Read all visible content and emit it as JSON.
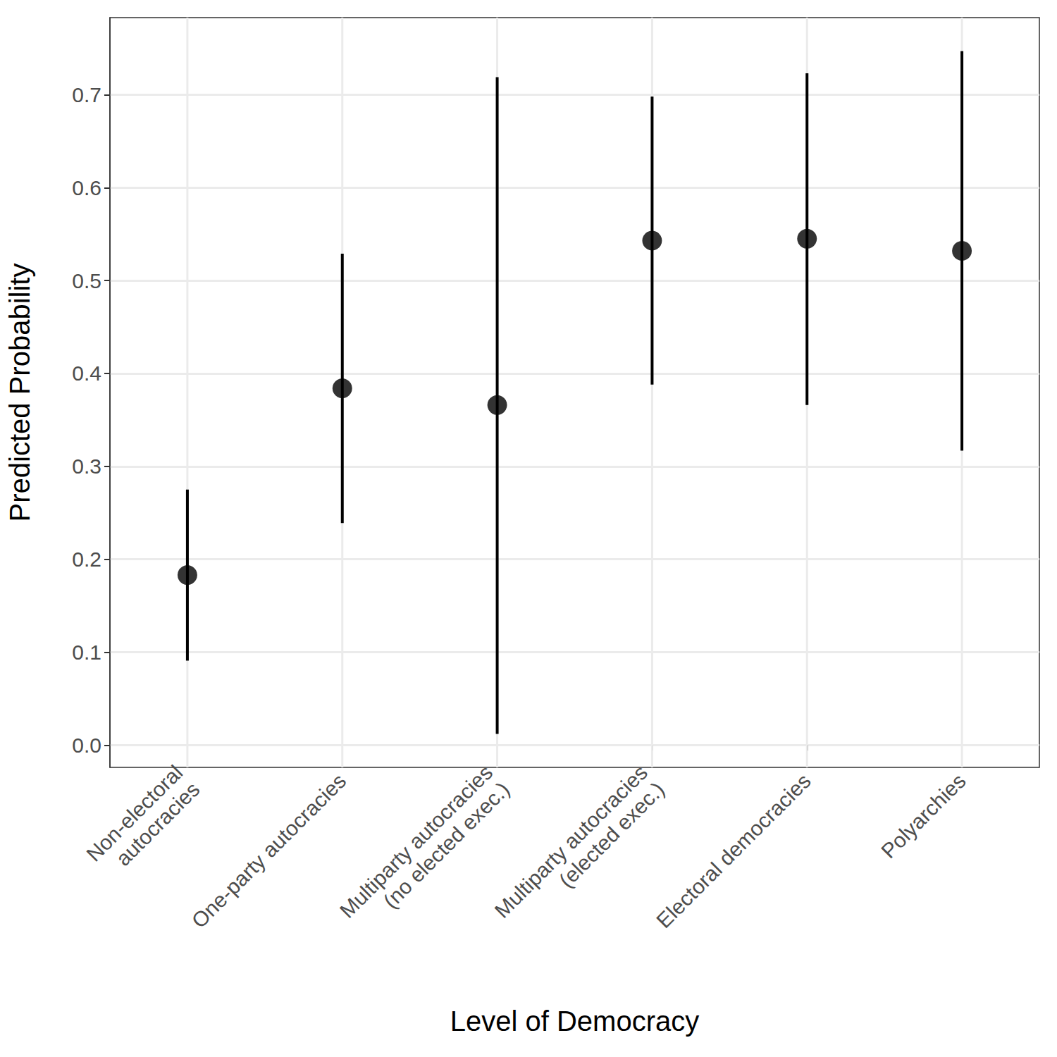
{
  "chart_data": {
    "type": "scatter",
    "x_label": "Level of Democracy",
    "y_label": "Predicted Probability",
    "categories": [
      "Non-electoral\nautocracies",
      "One-party autocracies",
      "Multiparty autocracies\n(no elected exec.)",
      "Multiparty autocracies\n(elected exec.)",
      "Electoral democracies",
      "Polyarchies"
    ],
    "values": [
      0.183,
      0.384,
      0.366,
      0.543,
      0.545,
      0.532
    ],
    "ci_lower": [
      0.091,
      0.239,
      0.012,
      0.388,
      0.366,
      0.317
    ],
    "ci_upper": [
      0.275,
      0.529,
      0.719,
      0.698,
      0.723,
      0.747
    ],
    "color": "#000000",
    "ylim": [
      -0.024,
      0.783
    ],
    "yticks": [
      {
        "value": 0,
        "label": "0.0"
      },
      0.1,
      0.2,
      0.3,
      0.4,
      0.5,
      0.6,
      0.7
    ],
    "grid": true
  }
}
